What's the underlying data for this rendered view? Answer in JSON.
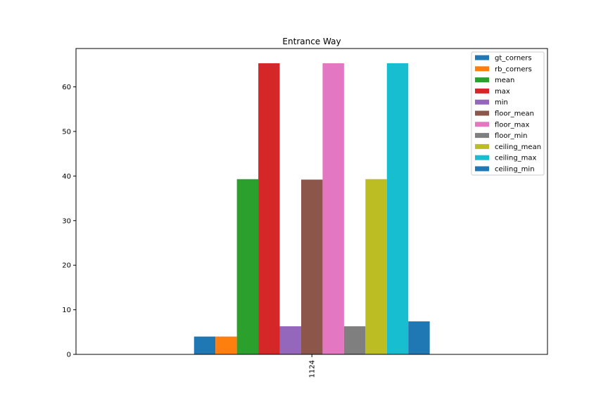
{
  "chart_data": {
    "type": "bar",
    "title": "Entrance Way",
    "xlabel": "",
    "ylabel": "",
    "categories": [
      "1124"
    ],
    "ylim": [
      0,
      68.6
    ],
    "yticks": [
      0,
      10,
      20,
      30,
      40,
      50,
      60
    ],
    "grid": false,
    "legend_position": "top-right",
    "series": [
      {
        "name": "gt_corners",
        "color": "#1f77b4",
        "values": [
          4
        ]
      },
      {
        "name": "rb_corners",
        "color": "#ff7f0e",
        "values": [
          4
        ]
      },
      {
        "name": "mean",
        "color": "#2ca02c",
        "values": [
          39.3
        ]
      },
      {
        "name": "max",
        "color": "#d62728",
        "values": [
          65.3
        ]
      },
      {
        "name": "min",
        "color": "#9467bd",
        "values": [
          6.3
        ]
      },
      {
        "name": "floor_mean",
        "color": "#8c564b",
        "values": [
          39.2
        ]
      },
      {
        "name": "floor_max",
        "color": "#e377c2",
        "values": [
          65.3
        ]
      },
      {
        "name": "floor_min",
        "color": "#7f7f7f",
        "values": [
          6.3
        ]
      },
      {
        "name": "ceiling_mean",
        "color": "#bcbd22",
        "values": [
          39.3
        ]
      },
      {
        "name": "ceiling_max",
        "color": "#17becf",
        "values": [
          65.3
        ]
      },
      {
        "name": "ceiling_min",
        "color": "#1f77b4",
        "values": [
          7.4
        ]
      }
    ]
  }
}
